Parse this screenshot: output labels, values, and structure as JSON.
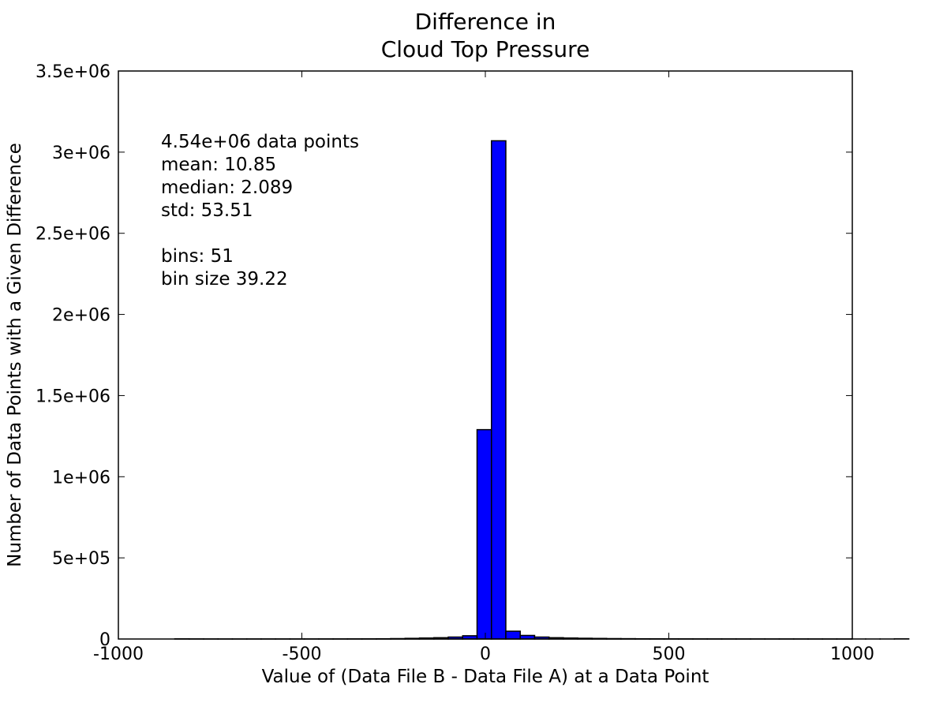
{
  "chart_data": {
    "type": "bar",
    "title_lines": [
      "Difference in",
      "Cloud Top Pressure"
    ],
    "xlabel": "Value of (Data File B - Data File A) at a Data Point",
    "ylabel": "Number of Data Points with a Given Difference",
    "xlim": [
      -1000,
      1000
    ],
    "ylim": [
      0,
      3500000
    ],
    "xticks": [
      -1000,
      -500,
      0,
      500,
      1000
    ],
    "xtick_labels": [
      "-1000",
      "-500",
      "0",
      "500",
      "1000"
    ],
    "yticks": [
      0,
      500000,
      1000000,
      1500000,
      2000000,
      2500000,
      3000000,
      3500000
    ],
    "ytick_labels": [
      "0",
      "5e+05",
      "1e+06",
      "1.5e+06",
      "2e+06",
      "2.5e+06",
      "3e+06",
      "3.5e+06"
    ],
    "grid": false,
    "bin_start": -846.2,
    "bin_width": 39.22,
    "bar_color": "#0000ff",
    "bin_counts": [
      1000,
      500,
      300,
      200,
      200,
      300,
      300,
      300,
      300,
      400,
      500,
      600,
      800,
      1000,
      1500,
      2500,
      4000,
      6000,
      8000,
      12000,
      20000,
      1290000,
      3070000,
      48000,
      22000,
      12000,
      8000,
      6000,
      4500,
      3500,
      2500,
      2000,
      1500,
      1200,
      1000,
      800,
      700,
      600,
      500,
      400,
      400,
      300,
      300,
      300,
      200,
      200,
      200,
      200,
      200,
      200,
      1000
    ],
    "stats_lines": [
      "4.54e+06 data points",
      "mean: 10.85",
      "median: 2.089",
      "std: 53.51",
      "",
      "bins: 51",
      "bin size 39.22"
    ]
  }
}
